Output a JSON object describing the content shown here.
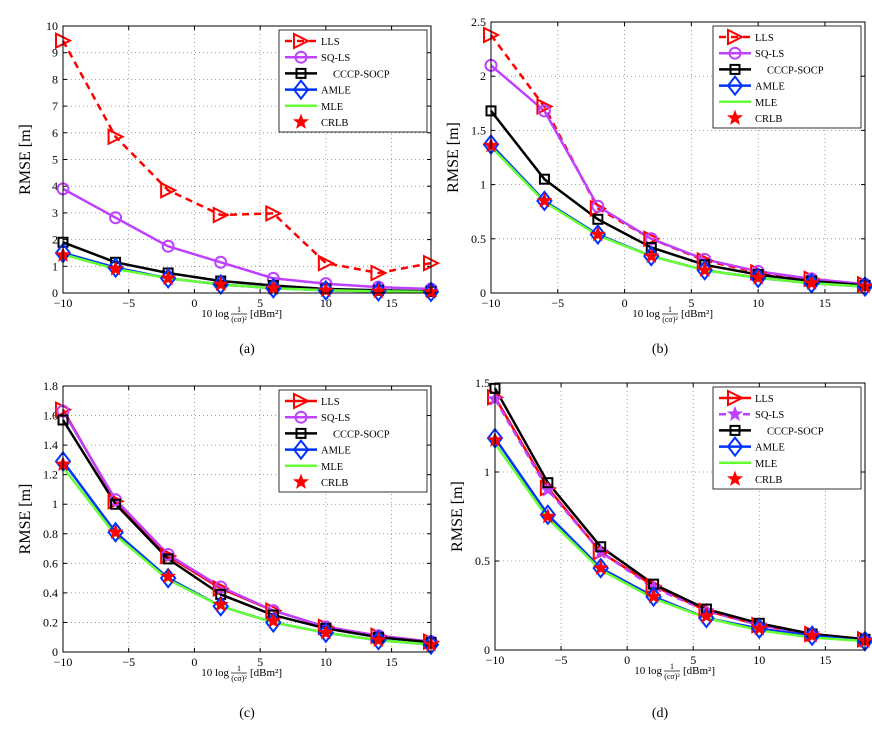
{
  "figure": {
    "colors": {
      "LLS": "#ff0000",
      "SQ-LS": "#bf40ff",
      "CCCP-SOCP": "#000000",
      "AMLE": "#0033ff",
      "MLE": "#66ff33",
      "CRLB": "#ff0000",
      "grid": "#888888"
    },
    "ylabel": "RMSE  [m]",
    "xlabel_formula": "10 log",
    "xlabel_fraction_num": "1",
    "xlabel_fraction_den": "(cσ)²",
    "xlabel_unit": "[dBm²]"
  },
  "chart_data": [
    {
      "type": "line",
      "caption": "(a)",
      "x": [
        -10,
        -6,
        -2,
        2,
        6,
        10,
        14,
        18
      ],
      "xlim": [
        -10,
        18
      ],
      "xticks": [
        -10,
        -5,
        0,
        5,
        10,
        15
      ],
      "xtick_labels": [
        "−10",
        "−5",
        "0",
        "5",
        "10",
        "15"
      ],
      "ylim": [
        0,
        10
      ],
      "yticks": [
        0,
        1,
        2,
        3,
        4,
        5,
        6,
        7,
        8,
        9,
        10
      ],
      "ytick_labels": [
        "0",
        "1",
        "2",
        "3",
        "4",
        "5",
        "6",
        "7",
        "8",
        "9",
        "10"
      ],
      "grid": true,
      "legend": "top-right",
      "series": [
        {
          "name": "LLS",
          "values": [
            9.45,
            5.85,
            3.85,
            2.92,
            2.98,
            1.12,
            0.75,
            1.12
          ]
        },
        {
          "name": "SQ-LS",
          "values": [
            3.9,
            2.82,
            1.75,
            1.15,
            0.55,
            0.35,
            0.22,
            0.15
          ]
        },
        {
          "name": "CCCP-SOCP",
          "values": [
            1.9,
            1.15,
            0.75,
            0.45,
            0.28,
            0.15,
            0.1,
            0.06
          ]
        },
        {
          "name": "AMLE",
          "values": [
            1.5,
            0.95,
            0.55,
            0.32,
            0.18,
            0.1,
            0.06,
            0.04
          ]
        },
        {
          "name": "MLE",
          "values": [
            1.45,
            0.9,
            0.55,
            0.32,
            0.18,
            0.1,
            0.06,
            0.04
          ]
        },
        {
          "name": "CRLB",
          "values": [
            1.42,
            0.9,
            0.55,
            0.32,
            0.18,
            0.1,
            0.06,
            0.04
          ]
        }
      ]
    },
    {
      "type": "line",
      "caption": "(b)",
      "x": [
        -10,
        -6,
        -2,
        2,
        6,
        10,
        14,
        18
      ],
      "xlim": [
        -10,
        18
      ],
      "xticks": [
        -10,
        -5,
        0,
        5,
        10,
        15
      ],
      "xtick_labels": [
        "−10",
        "−5",
        "0",
        "5",
        "10",
        "15"
      ],
      "ylim": [
        0,
        2.5
      ],
      "yticks": [
        0,
        0.5,
        1,
        1.5,
        2,
        2.5
      ],
      "ytick_labels": [
        "0",
        "0.5",
        "1",
        "1.5",
        "2",
        "2.5"
      ],
      "grid": true,
      "legend": "top-right",
      "series": [
        {
          "name": "LLS",
          "values": [
            2.38,
            1.72,
            0.78,
            0.5,
            0.3,
            0.19,
            0.13,
            0.08
          ]
        },
        {
          "name": "SQ-LS",
          "values": [
            2.1,
            1.68,
            0.8,
            0.5,
            0.31,
            0.2,
            0.13,
            0.08
          ]
        },
        {
          "name": "CCCP-SOCP",
          "values": [
            1.68,
            1.05,
            0.68,
            0.42,
            0.26,
            0.17,
            0.11,
            0.07
          ]
        },
        {
          "name": "AMLE",
          "values": [
            1.37,
            0.85,
            0.54,
            0.34,
            0.21,
            0.14,
            0.09,
            0.06
          ]
        },
        {
          "name": "MLE",
          "values": [
            1.35,
            0.84,
            0.53,
            0.34,
            0.21,
            0.14,
            0.09,
            0.06
          ]
        },
        {
          "name": "CRLB",
          "values": [
            1.36,
            0.85,
            0.54,
            0.34,
            0.21,
            0.14,
            0.09,
            0.06
          ]
        }
      ]
    },
    {
      "type": "line",
      "caption": "(c)",
      "x": [
        -10,
        -6,
        -2,
        2,
        6,
        10,
        14,
        18
      ],
      "xlim": [
        -10,
        18
      ],
      "xticks": [
        -10,
        -5,
        0,
        5,
        10,
        15
      ],
      "xtick_labels": [
        "−10",
        "−5",
        "0",
        "5",
        "10",
        "15"
      ],
      "ylim": [
        0,
        1.8
      ],
      "yticks": [
        0,
        0.2,
        0.4,
        0.6,
        0.8,
        1,
        1.2,
        1.4,
        1.6,
        1.8
      ],
      "ytick_labels": [
        "0",
        "0.2",
        "0.4",
        "0.6",
        "0.8",
        "1",
        "1.2",
        "1.4",
        "1.6",
        "1.8"
      ],
      "grid": true,
      "legend": "top-right",
      "series": [
        {
          "name": "LLS",
          "values": [
            1.64,
            1.02,
            0.65,
            0.43,
            0.28,
            0.17,
            0.11,
            0.07
          ]
        },
        {
          "name": "SQ-LS",
          "values": [
            1.63,
            1.03,
            0.66,
            0.44,
            0.28,
            0.17,
            0.11,
            0.07
          ]
        },
        {
          "name": "CCCP-SOCP",
          "values": [
            1.57,
            1.0,
            0.63,
            0.39,
            0.25,
            0.16,
            0.1,
            0.065
          ]
        },
        {
          "name": "AMLE",
          "values": [
            1.29,
            0.81,
            0.5,
            0.31,
            0.2,
            0.13,
            0.08,
            0.05
          ]
        },
        {
          "name": "MLE",
          "values": [
            1.25,
            0.79,
            0.49,
            0.31,
            0.2,
            0.13,
            0.08,
            0.05
          ]
        },
        {
          "name": "CRLB",
          "values": [
            1.27,
            0.81,
            0.51,
            0.32,
            0.21,
            0.13,
            0.08,
            0.05
          ]
        }
      ]
    },
    {
      "type": "line",
      "caption": "(d)",
      "x": [
        -10,
        -6,
        -2,
        2,
        6,
        10,
        14,
        18
      ],
      "xlim": [
        -10,
        18
      ],
      "xticks": [
        -10,
        -5,
        0,
        5,
        10,
        15
      ],
      "xtick_labels": [
        "−10",
        "−5",
        "0",
        "5",
        "10",
        "15"
      ],
      "ylim": [
        0,
        1.5
      ],
      "yticks": [
        0,
        0.5,
        1,
        1.5
      ],
      "ytick_labels": [
        "0",
        "0.5",
        "1",
        "1.5"
      ],
      "grid": true,
      "legend": "top-right",
      "series": [
        {
          "name": "LLS",
          "values": [
            1.42,
            0.91,
            0.55,
            0.36,
            0.22,
            0.14,
            0.09,
            0.06
          ]
        },
        {
          "name": "SQ-LS",
          "values": [
            1.41,
            0.9,
            0.55,
            0.35,
            0.22,
            0.14,
            0.09,
            0.06
          ]
        },
        {
          "name": "CCCP-SOCP",
          "values": [
            1.47,
            0.94,
            0.58,
            0.37,
            0.23,
            0.15,
            0.09,
            0.06
          ]
        },
        {
          "name": "AMLE",
          "values": [
            1.19,
            0.76,
            0.46,
            0.3,
            0.18,
            0.12,
            0.08,
            0.05
          ]
        },
        {
          "name": "MLE",
          "values": [
            1.16,
            0.74,
            0.45,
            0.29,
            0.18,
            0.11,
            0.07,
            0.05
          ]
        },
        {
          "name": "CRLB",
          "values": [
            1.18,
            0.75,
            0.46,
            0.3,
            0.19,
            0.12,
            0.08,
            0.05
          ]
        }
      ]
    }
  ]
}
